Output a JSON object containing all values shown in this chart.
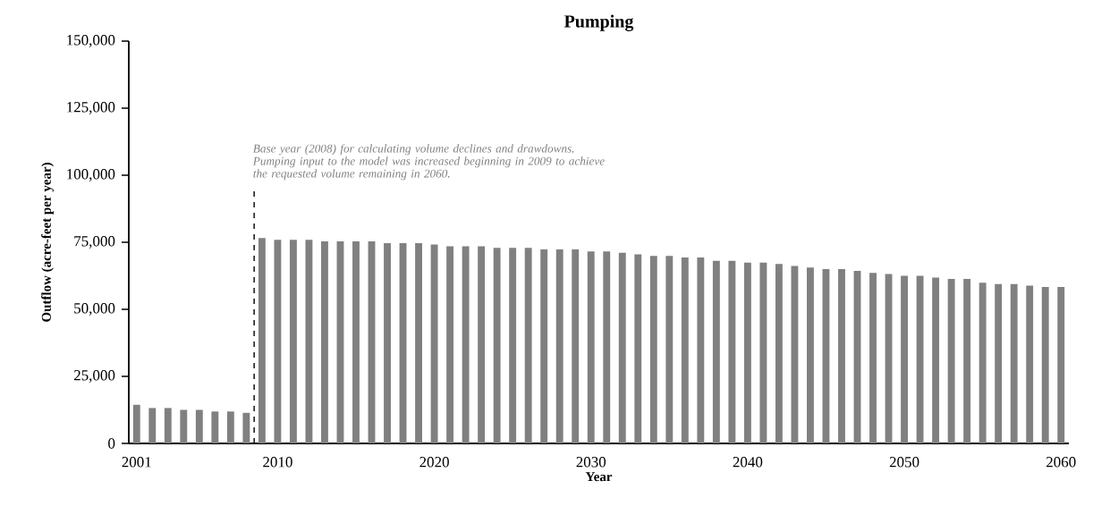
{
  "chart_data": {
    "type": "bar",
    "title": "Pumping",
    "xlabel": "Year",
    "ylabel": "Outflow (acre-feet per year)",
    "x": [
      2001,
      2002,
      2003,
      2004,
      2005,
      2006,
      2007,
      2008,
      2009,
      2010,
      2011,
      2012,
      2013,
      2014,
      2015,
      2016,
      2017,
      2018,
      2019,
      2020,
      2021,
      2022,
      2023,
      2024,
      2025,
      2026,
      2027,
      2028,
      2029,
      2030,
      2031,
      2032,
      2033,
      2034,
      2035,
      2036,
      2037,
      2038,
      2039,
      2040,
      2041,
      2042,
      2043,
      2044,
      2045,
      2046,
      2047,
      2048,
      2049,
      2050,
      2051,
      2052,
      2053,
      2054,
      2055,
      2056,
      2057,
      2058,
      2059,
      2060
    ],
    "values": [
      14400,
      13200,
      13200,
      12500,
      12500,
      11900,
      11900,
      11400,
      76600,
      75900,
      75900,
      75900,
      75300,
      75300,
      75300,
      75300,
      74700,
      74700,
      74700,
      74200,
      73500,
      73500,
      73500,
      72900,
      72900,
      72900,
      72300,
      72300,
      72300,
      71600,
      71600,
      71100,
      70500,
      69900,
      69900,
      69300,
      69300,
      68100,
      68100,
      67400,
      67400,
      66900,
      66200,
      65600,
      65000,
      65000,
      64300,
      63600,
      63200,
      62500,
      62500,
      61800,
      61300,
      61300,
      59900,
      59400,
      59400,
      58800,
      58300,
      58300
    ],
    "color": "#808080",
    "xlim": [
      2000.5,
      2060.5
    ],
    "xticks": [
      2001,
      2010,
      2020,
      2030,
      2040,
      2050,
      2060
    ],
    "ylim": [
      0,
      150000
    ],
    "yticks": [
      0,
      {
        "value": 25000,
        "label": "25,000"
      },
      {
        "value": 50000,
        "label": "50,000"
      },
      {
        "value": 75000,
        "label": "75,000"
      },
      {
        "value": 100000,
        "label": "100,000"
      },
      {
        "value": 125000,
        "label": "125,000"
      },
      {
        "value": 150000,
        "label": "150,000"
      }
    ],
    "ref_lines": [
      {
        "axis": "x",
        "value": 2008.5,
        "line_style": "dashed",
        "color": "#000000",
        "label": "Base year (2008) for calculating volume declines and drawdowns. Pumping input to the model was increased beginning in 2009 to achieve the requested volume remaining in 2060."
      }
    ],
    "grid": false
  }
}
